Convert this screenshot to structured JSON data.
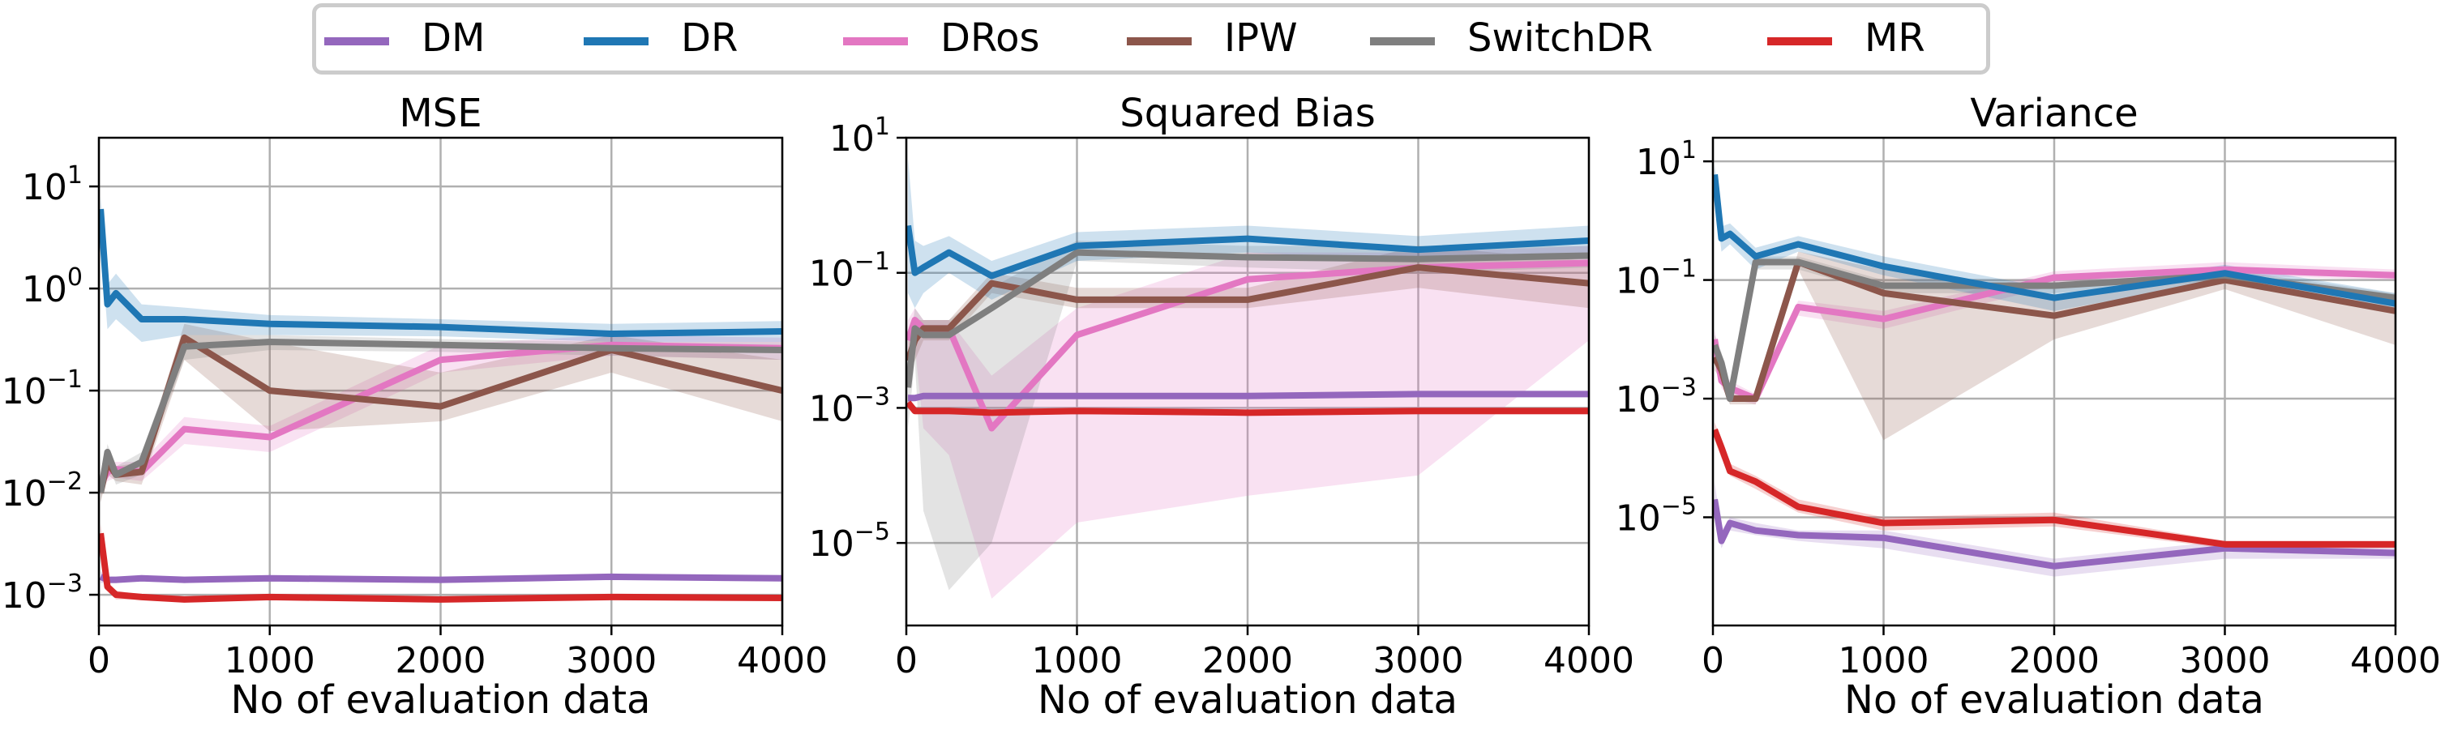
{
  "legend": [
    {
      "name": "DM",
      "color": "#9467bd"
    },
    {
      "name": "DR",
      "color": "#1f77b4"
    },
    {
      "name": "DRos",
      "color": "#e377c2"
    },
    {
      "name": "IPW",
      "color": "#8c564b"
    },
    {
      "name": "SwitchDR",
      "color": "#7f7f7f"
    },
    {
      "name": "MR",
      "color": "#d62728"
    }
  ],
  "chart_data": [
    {
      "type": "line",
      "title": "MSE",
      "xlabel": "No of evaluation data",
      "ylabel": "",
      "yscale": "log",
      "xlim": [
        0,
        4000
      ],
      "ylim": [
        0.0005,
        30
      ],
      "xticks": [
        "0",
        "1000",
        "2000",
        "3000",
        "4000"
      ],
      "yticks": [
        {
          "base": "10",
          "exp": "1",
          "v": 10
        },
        {
          "base": "10",
          "exp": "0",
          "v": 1
        },
        {
          "base": "10",
          "exp": "−1",
          "v": 0.1
        },
        {
          "base": "10",
          "exp": "−2",
          "v": 0.01
        },
        {
          "base": "10",
          "exp": "−3",
          "v": 0.001
        }
      ],
      "grid": true,
      "x": [
        10,
        50,
        100,
        250,
        500,
        1000,
        2000,
        3000,
        4000
      ],
      "series": [
        {
          "name": "DM",
          "values": [
            0.0015,
            0.0014,
            0.0014,
            0.00145,
            0.0014,
            0.00145,
            0.0014,
            0.0015,
            0.00145
          ],
          "band": [
            [
              0.0013,
              0.0017
            ],
            [
              0.0013,
              0.0015
            ],
            [
              0.0013,
              0.0015
            ],
            [
              0.0014,
              0.0015
            ],
            [
              0.0013,
              0.0015
            ],
            [
              0.0014,
              0.0015
            ],
            [
              0.0013,
              0.0015
            ],
            [
              0.0014,
              0.0016
            ],
            [
              0.0014,
              0.0015
            ]
          ]
        },
        {
          "name": "DR",
          "values": [
            6,
            0.7,
            0.9,
            0.5,
            0.5,
            0.45,
            0.42,
            0.36,
            0.38
          ],
          "band": [
            [
              3,
              8
            ],
            [
              0.4,
              1.1
            ],
            [
              0.5,
              1.4
            ],
            [
              0.3,
              0.7
            ],
            [
              0.35,
              0.65
            ],
            [
              0.35,
              0.55
            ],
            [
              0.34,
              0.5
            ],
            [
              0.3,
              0.45
            ],
            [
              0.3,
              0.48
            ]
          ]
        },
        {
          "name": "DRos",
          "values": [
            0.012,
            0.016,
            0.017,
            0.016,
            0.042,
            0.035,
            0.2,
            0.28,
            0.26
          ],
          "band": [
            [
              0.01,
              0.015
            ],
            [
              0.013,
              0.02
            ],
            [
              0.014,
              0.02
            ],
            [
              0.013,
              0.02
            ],
            [
              0.03,
              0.055
            ],
            [
              0.025,
              0.045
            ],
            [
              0.15,
              0.28
            ],
            [
              0.22,
              0.35
            ],
            [
              0.2,
              0.33
            ]
          ]
        },
        {
          "name": "IPW",
          "values": [
            0.01,
            0.02,
            0.015,
            0.016,
            0.33,
            0.1,
            0.07,
            0.25,
            0.1
          ],
          "band": [
            [
              0.008,
              0.012
            ],
            [
              0.015,
              0.025
            ],
            [
              0.013,
              0.018
            ],
            [
              0.012,
              0.02
            ],
            [
              0.2,
              0.45
            ],
            [
              0.04,
              0.3
            ],
            [
              0.05,
              0.15
            ],
            [
              0.15,
              0.35
            ],
            [
              0.05,
              0.2
            ]
          ]
        },
        {
          "name": "SwitchDR",
          "values": [
            0.01,
            0.025,
            0.015,
            0.02,
            0.27,
            0.3,
            0.28,
            0.26,
            0.25
          ],
          "band": [
            [
              0.008,
              0.012
            ],
            [
              0.02,
              0.03
            ],
            [
              0.012,
              0.018
            ],
            [
              0.015,
              0.025
            ],
            [
              0.2,
              0.35
            ],
            [
              0.25,
              0.35
            ],
            [
              0.24,
              0.32
            ],
            [
              0.22,
              0.3
            ],
            [
              0.2,
              0.3
            ]
          ]
        },
        {
          "name": "MR",
          "values": [
            0.004,
            0.0012,
            0.001,
            0.00095,
            0.0009,
            0.00095,
            0.0009,
            0.00095,
            0.00093
          ],
          "band": [
            [
              0.003,
              0.005
            ],
            [
              0.0011,
              0.0013
            ],
            [
              0.0009,
              0.0011
            ],
            [
              0.0009,
              0.001
            ],
            [
              0.00085,
              0.00095
            ],
            [
              0.0009,
              0.001
            ],
            [
              0.00085,
              0.00095
            ],
            [
              0.0009,
              0.001
            ],
            [
              0.00088,
              0.00098
            ]
          ]
        }
      ]
    },
    {
      "type": "line",
      "title": "Squared Bias",
      "xlabel": "No of evaluation data",
      "ylabel": "",
      "yscale": "log",
      "xlim": [
        0,
        4000
      ],
      "ylim": [
        6e-07,
        10
      ],
      "xticks": [
        "0",
        "1000",
        "2000",
        "3000",
        "4000"
      ],
      "yticks": [
        {
          "base": "10",
          "exp": "1",
          "v": 10
        },
        {
          "base": "10",
          "exp": "−1",
          "v": 0.1
        },
        {
          "base": "10",
          "exp": "−3",
          "v": 0.001
        },
        {
          "base": "10",
          "exp": "−5",
          "v": 1e-05
        }
      ],
      "grid": true,
      "x": [
        10,
        50,
        100,
        250,
        500,
        1000,
        2000,
        3000,
        4000
      ],
      "series": [
        {
          "name": "DM",
          "values": [
            0.0014,
            0.0014,
            0.0015,
            0.0015,
            0.0015,
            0.0015,
            0.0015,
            0.0016,
            0.0016
          ],
          "band": [
            [
              0.0012,
              0.0016
            ],
            [
              0.0013,
              0.0015
            ],
            [
              0.0014,
              0.0016
            ],
            [
              0.0014,
              0.0016
            ],
            [
              0.0014,
              0.0016
            ],
            [
              0.0014,
              0.0016
            ],
            [
              0.0014,
              0.0016
            ],
            [
              0.0015,
              0.0017
            ],
            [
              0.0015,
              0.0017
            ]
          ]
        },
        {
          "name": "DR",
          "values": [
            0.5,
            0.1,
            0.12,
            0.2,
            0.09,
            0.25,
            0.32,
            0.22,
            0.3
          ],
          "band": [
            [
              0.05,
              5
            ],
            [
              0.03,
              0.3
            ],
            [
              0.05,
              0.25
            ],
            [
              0.1,
              0.35
            ],
            [
              0.04,
              0.15
            ],
            [
              0.15,
              0.4
            ],
            [
              0.2,
              0.5
            ],
            [
              0.15,
              0.35
            ],
            [
              0.2,
              0.5
            ]
          ]
        },
        {
          "name": "DRos",
          "values": [
            0.01,
            0.02,
            0.015,
            0.015,
            0.0005,
            0.012,
            0.08,
            0.12,
            0.14
          ],
          "band": [
            [
              0.005,
              0.02
            ],
            [
              0.008,
              0.03
            ],
            [
              0.0005,
              0.02
            ],
            [
              0.0002,
              0.02
            ],
            [
              1.5e-06,
              0.003
            ],
            [
              2e-05,
              0.03
            ],
            [
              5e-05,
              0.2
            ],
            [
              0.0001,
              0.2
            ],
            [
              0.01,
              0.25
            ]
          ]
        },
        {
          "name": "IPW",
          "values": [
            0.005,
            0.01,
            0.015,
            0.015,
            0.07,
            0.04,
            0.04,
            0.12,
            0.07
          ],
          "band": [
            [
              0.003,
              0.01
            ],
            [
              0.005,
              0.02
            ],
            [
              0.01,
              0.02
            ],
            [
              0.01,
              0.02
            ],
            [
              0.05,
              0.1
            ],
            [
              0.03,
              0.06
            ],
            [
              0.03,
              0.06
            ],
            [
              0.06,
              0.25
            ],
            [
              0.03,
              0.15
            ]
          ]
        },
        {
          "name": "SwitchDR",
          "values": [
            0.002,
            0.015,
            0.012,
            0.012,
            0.03,
            0.2,
            0.17,
            0.16,
            0.18
          ],
          "band": [
            [
              0.0005,
              0.005
            ],
            [
              0.005,
              0.03
            ],
            [
              3e-05,
              0.02
            ],
            [
              2e-06,
              0.02
            ],
            [
              1e-05,
              0.06
            ],
            [
              0.15,
              0.3
            ],
            [
              0.12,
              0.25
            ],
            [
              0.1,
              0.25
            ],
            [
              0.12,
              0.25
            ]
          ]
        },
        {
          "name": "MR",
          "values": [
            0.0012,
            0.0009,
            0.0009,
            0.0009,
            0.00085,
            0.0009,
            0.00085,
            0.0009,
            0.0009
          ],
          "band": [
            [
              0.001,
              0.0015
            ],
            [
              0.0008,
              0.001
            ],
            [
              0.0008,
              0.001
            ],
            [
              0.0008,
              0.001
            ],
            [
              0.0008,
              0.0009
            ],
            [
              0.0008,
              0.001
            ],
            [
              0.0008,
              0.0009
            ],
            [
              0.0008,
              0.001
            ],
            [
              0.0008,
              0.001
            ]
          ]
        }
      ]
    },
    {
      "type": "line",
      "title": "Variance",
      "xlabel": "No of evaluation data",
      "ylabel": "",
      "yscale": "log",
      "xlim": [
        0,
        4000
      ],
      "ylim": [
        1.5e-07,
        25
      ],
      "xticks": [
        "0",
        "1000",
        "2000",
        "3000",
        "4000"
      ],
      "yticks": [
        {
          "base": "10",
          "exp": "1",
          "v": 10
        },
        {
          "base": "10",
          "exp": "−1",
          "v": 0.1
        },
        {
          "base": "10",
          "exp": "−3",
          "v": 0.001
        },
        {
          "base": "10",
          "exp": "−5",
          "v": 1e-05
        }
      ],
      "grid": true,
      "x": [
        10,
        50,
        100,
        250,
        500,
        1000,
        2000,
        3000,
        4000
      ],
      "series": [
        {
          "name": "DM",
          "values": [
            2e-05,
            4e-06,
            8e-06,
            6e-06,
            5e-06,
            4.5e-06,
            1.5e-06,
            3e-06,
            2.5e-06
          ],
          "band": [
            [
              1e-05,
              4e-05
            ],
            [
              3e-06,
              6e-06
            ],
            [
              6e-06,
              1e-05
            ],
            [
              5e-06,
              8e-06
            ],
            [
              4e-06,
              6e-06
            ],
            [
              3e-06,
              6e-06
            ],
            [
              1e-06,
              2e-06
            ],
            [
              2e-06,
              4e-06
            ],
            [
              2e-06,
              3e-06
            ]
          ]
        },
        {
          "name": "DR",
          "values": [
            6,
            0.5,
            0.6,
            0.25,
            0.4,
            0.17,
            0.05,
            0.13,
            0.04
          ],
          "band": [
            [
              3,
              9
            ],
            [
              0.3,
              0.8
            ],
            [
              0.4,
              0.9
            ],
            [
              0.15,
              0.35
            ],
            [
              0.3,
              0.55
            ],
            [
              0.12,
              0.25
            ],
            [
              0.03,
              0.07
            ],
            [
              0.1,
              0.18
            ],
            [
              0.03,
              0.06
            ]
          ]
        },
        {
          "name": "DRos",
          "values": [
            0.01,
            0.002,
            0.0015,
            0.001,
            0.035,
            0.022,
            0.11,
            0.15,
            0.12
          ],
          "band": [
            [
              0.005,
              0.015
            ],
            [
              0.0015,
              0.003
            ],
            [
              0.001,
              0.002
            ],
            [
              0.0008,
              0.0012
            ],
            [
              0.025,
              0.045
            ],
            [
              0.015,
              0.03
            ],
            [
              0.08,
              0.14
            ],
            [
              0.12,
              0.2
            ],
            [
              0.1,
              0.15
            ]
          ]
        },
        {
          "name": "IPW",
          "values": [
            0.005,
            0.003,
            0.001,
            0.001,
            0.2,
            0.06,
            0.025,
            0.1,
            0.03
          ],
          "band": [
            [
              0.003,
              0.008
            ],
            [
              0.002,
              0.004
            ],
            [
              0.0008,
              0.0012
            ],
            [
              0.0008,
              0.0012
            ],
            [
              0.15,
              0.3
            ],
            [
              0.0002,
              0.15
            ],
            [
              0.01,
              0.05
            ],
            [
              0.07,
              0.14
            ],
            [
              0.008,
              0.05
            ]
          ]
        },
        {
          "name": "SwitchDR",
          "values": [
            0.008,
            0.004,
            0.001,
            0.2,
            0.2,
            0.08,
            0.08,
            0.12,
            0.05
          ],
          "band": [
            [
              0.005,
              0.012
            ],
            [
              0.003,
              0.006
            ],
            [
              0.0008,
              0.0012
            ],
            [
              0.15,
              0.25
            ],
            [
              0.15,
              0.25
            ],
            [
              0.06,
              0.1
            ],
            [
              0.06,
              0.1
            ],
            [
              0.1,
              0.15
            ],
            [
              0.04,
              0.06
            ]
          ]
        },
        {
          "name": "MR",
          "values": [
            0.0003,
            0.00015,
            6e-05,
            4e-05,
            1.5e-05,
            8e-06,
            9e-06,
            3.5e-06,
            3.5e-06
          ],
          "band": [
            [
              0.0002,
              0.0004
            ],
            [
              0.0001,
              0.0002
            ],
            [
              5e-05,
              8e-05
            ],
            [
              3e-05,
              5e-05
            ],
            [
              1.2e-05,
              2e-05
            ],
            [
              6e-06,
              1e-05
            ],
            [
              7e-06,
              1.2e-05
            ],
            [
              3e-06,
              4e-06
            ],
            [
              3e-06,
              4e-06
            ]
          ]
        }
      ]
    }
  ]
}
